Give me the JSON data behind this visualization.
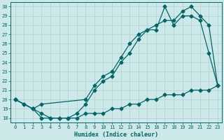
{
  "xlabel": "Humidex (Indice chaleur)",
  "background_color": "#cce8e8",
  "line_color": "#006666",
  "grid_color": "#b0d0d0",
  "xlim_min": -0.5,
  "xlim_max": 23.5,
  "ylim_min": 17.5,
  "ylim_max": 30.5,
  "yticks": [
    18,
    19,
    20,
    21,
    22,
    23,
    24,
    25,
    26,
    27,
    28,
    29,
    30
  ],
  "xticks": [
    0,
    1,
    2,
    3,
    4,
    5,
    6,
    7,
    8,
    9,
    10,
    11,
    12,
    13,
    14,
    15,
    16,
    17,
    18,
    19,
    20,
    21,
    22,
    23
  ],
  "curve1_x": [
    0,
    1,
    2,
    3,
    4,
    5,
    6,
    7,
    8,
    9,
    10,
    11,
    12,
    13,
    14,
    15,
    16,
    17,
    18,
    19,
    20,
    21,
    22,
    23
  ],
  "curve1_y": [
    20.0,
    19.5,
    19.0,
    18.0,
    18.0,
    18.0,
    18.0,
    18.5,
    19.5,
    21.0,
    22.0,
    22.5,
    24.0,
    25.0,
    26.5,
    27.5,
    27.5,
    30.0,
    28.0,
    29.0,
    29.0,
    28.5,
    25.0,
    21.5
  ],
  "curve2_x": [
    0,
    1,
    2,
    3,
    4,
    5,
    6,
    7,
    8,
    9,
    10,
    11,
    12,
    13,
    14,
    15,
    16,
    17,
    18,
    19,
    20,
    21,
    22,
    23
  ],
  "curve2_y": [
    20.0,
    19.5,
    19.0,
    18.5,
    18.0,
    18.0,
    18.0,
    18.0,
    18.5,
    18.5,
    18.5,
    19.0,
    19.0,
    19.5,
    19.5,
    20.0,
    20.0,
    20.5,
    20.5,
    20.5,
    21.0,
    21.0,
    21.0,
    21.5
  ],
  "curve3_x": [
    0,
    2,
    3,
    8,
    9,
    10,
    11,
    12,
    13,
    14,
    15,
    16,
    17,
    18,
    19,
    20,
    21,
    22,
    23
  ],
  "curve3_y": [
    20.0,
    19.0,
    19.5,
    20.0,
    21.5,
    22.5,
    23.0,
    24.5,
    26.0,
    27.0,
    27.5,
    28.0,
    28.5,
    28.5,
    29.5,
    30.0,
    29.0,
    28.0,
    21.5
  ]
}
